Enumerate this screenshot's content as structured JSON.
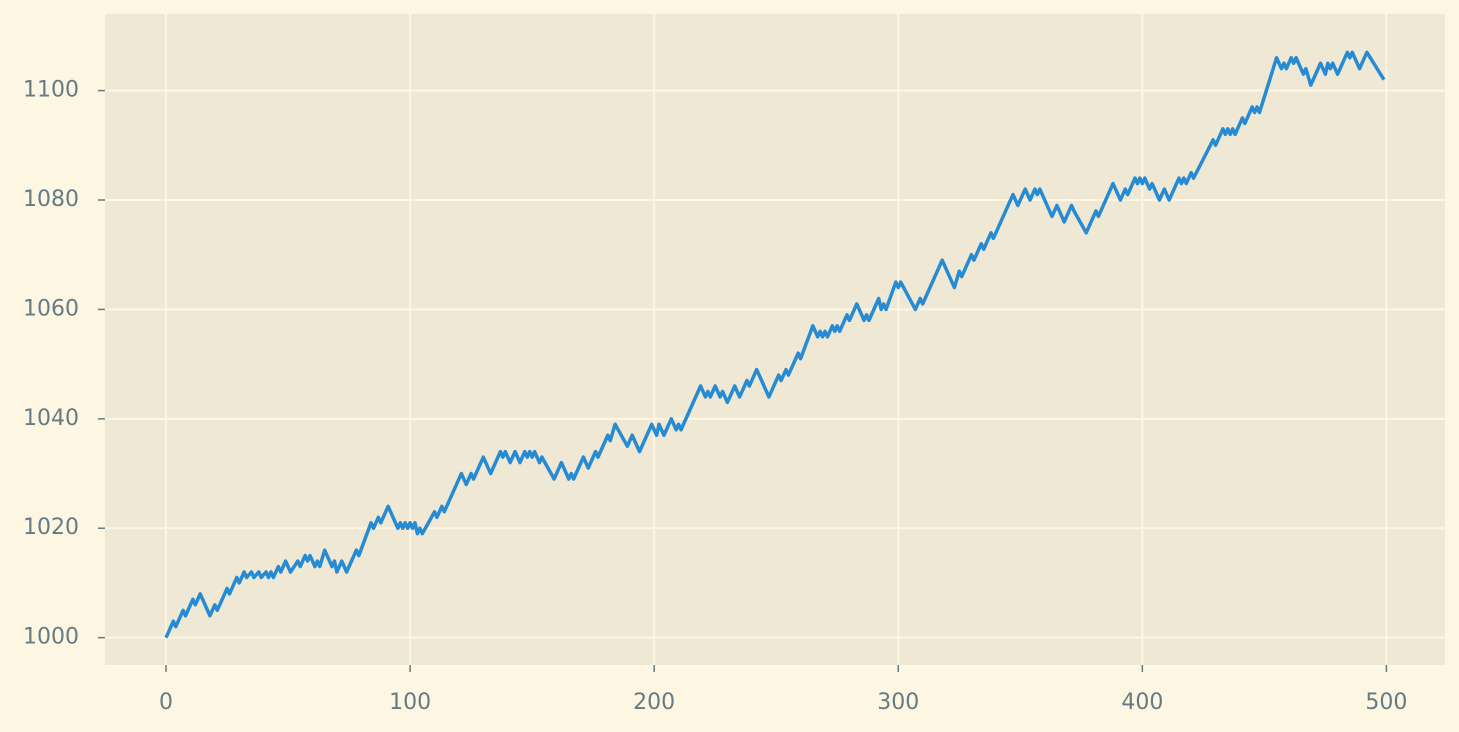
{
  "chart_data": {
    "type": "line",
    "x": [
      0,
      3,
      4,
      7,
      8,
      11,
      12,
      14,
      18,
      20,
      21,
      25,
      26,
      29,
      30,
      32,
      33,
      35,
      36,
      38,
      39,
      41,
      42,
      43,
      44,
      46,
      47,
      49,
      51,
      54,
      55,
      57,
      58,
      59,
      61,
      62,
      63,
      65,
      68,
      69,
      70,
      72,
      74,
      78,
      79,
      84,
      85,
      87,
      88,
      91,
      95,
      96,
      97,
      98,
      99,
      100,
      101,
      102,
      103,
      104,
      105,
      110,
      111,
      113,
      114,
      121,
      123,
      125,
      126,
      130,
      133,
      137,
      138,
      139,
      141,
      143,
      145,
      147,
      148,
      149,
      150,
      151,
      153,
      154,
      159,
      162,
      165,
      166,
      167,
      171,
      173,
      176,
      177,
      181,
      182,
      184,
      189,
      191,
      194,
      199,
      201,
      202,
      204,
      207,
      209,
      210,
      211,
      219,
      221,
      222,
      223,
      225,
      227,
      228,
      230,
      233,
      235,
      238,
      239,
      242,
      247,
      251,
      252,
      254,
      255,
      259,
      260,
      265,
      267,
      268,
      269,
      270,
      271,
      273,
      274,
      275,
      276,
      279,
      280,
      283,
      286,
      287,
      288,
      292,
      293,
      294,
      295,
      299,
      300,
      301,
      307,
      309,
      310,
      318,
      323,
      325,
      326,
      330,
      331,
      334,
      335,
      338,
      339,
      347,
      349,
      352,
      354,
      356,
      357,
      358,
      363,
      365,
      368,
      371,
      372,
      377,
      381,
      382,
      388,
      391,
      393,
      394,
      397,
      398,
      399,
      400,
      401,
      403,
      404,
      407,
      409,
      411,
      415,
      416,
      417,
      418,
      420,
      421,
      429,
      430,
      433,
      434,
      435,
      436,
      437,
      438,
      441,
      442,
      445,
      446,
      447,
      448,
      455,
      457,
      458,
      459,
      461,
      462,
      463,
      466,
      467,
      469,
      473,
      475,
      476,
      477,
      478,
      480,
      484,
      485,
      486,
      489,
      492,
      499
    ],
    "values": [
      1000,
      1003,
      1002,
      1005,
      1004,
      1007,
      1006,
      1008,
      1004,
      1006,
      1005,
      1009,
      1008,
      1011,
      1010,
      1012,
      1011,
      1012,
      1011,
      1012,
      1011,
      1012,
      1011,
      1012,
      1011,
      1013,
      1012,
      1014,
      1012,
      1014,
      1013,
      1015,
      1014,
      1015,
      1013,
      1014,
      1013,
      1016,
      1013,
      1014,
      1012,
      1014,
      1012,
      1016,
      1015,
      1021,
      1020,
      1022,
      1021,
      1024,
      1020,
      1021,
      1020,
      1021,
      1020,
      1021,
      1020,
      1021,
      1019,
      1020,
      1019,
      1023,
      1022,
      1024,
      1023,
      1030,
      1028,
      1030,
      1029,
      1033,
      1030,
      1034,
      1033,
      1034,
      1032,
      1034,
      1032,
      1034,
      1033,
      1034,
      1033,
      1034,
      1032,
      1033,
      1029,
      1032,
      1029,
      1030,
      1029,
      1033,
      1031,
      1034,
      1033,
      1037,
      1036,
      1039,
      1035,
      1037,
      1034,
      1039,
      1037,
      1039,
      1037,
      1040,
      1038,
      1039,
      1038,
      1046,
      1044,
      1045,
      1044,
      1046,
      1044,
      1045,
      1043,
      1046,
      1044,
      1047,
      1046,
      1049,
      1044,
      1048,
      1047,
      1049,
      1048,
      1052,
      1051,
      1057,
      1055,
      1056,
      1055,
      1056,
      1055,
      1057,
      1056,
      1057,
      1056,
      1059,
      1058,
      1061,
      1058,
      1059,
      1058,
      1062,
      1060,
      1061,
      1060,
      1065,
      1064,
      1065,
      1060,
      1062,
      1061,
      1069,
      1064,
      1067,
      1066,
      1070,
      1069,
      1072,
      1071,
      1074,
      1073,
      1081,
      1079,
      1082,
      1080,
      1082,
      1081,
      1082,
      1077,
      1079,
      1076,
      1079,
      1078,
      1074,
      1078,
      1077,
      1083,
      1080,
      1082,
      1081,
      1084,
      1083,
      1084,
      1083,
      1084,
      1082,
      1083,
      1080,
      1082,
      1080,
      1084,
      1083,
      1084,
      1083,
      1085,
      1084,
      1091,
      1090,
      1093,
      1092,
      1093,
      1092,
      1093,
      1092,
      1095,
      1094,
      1097,
      1096,
      1097,
      1096,
      1106,
      1104,
      1105,
      1104,
      1106,
      1105,
      1106,
      1103,
      1104,
      1101,
      1105,
      1103,
      1105,
      1104,
      1105,
      1103,
      1107,
      1106,
      1107,
      1104,
      1107,
      1102
    ],
    "color": "#268bd2",
    "xlim": [
      -25,
      524
    ],
    "ylim": [
      995,
      1114
    ],
    "xticks": [
      0,
      100,
      200,
      300,
      400,
      500
    ],
    "yticks": [
      1000,
      1020,
      1040,
      1060,
      1080,
      1100
    ],
    "grid": true
  }
}
